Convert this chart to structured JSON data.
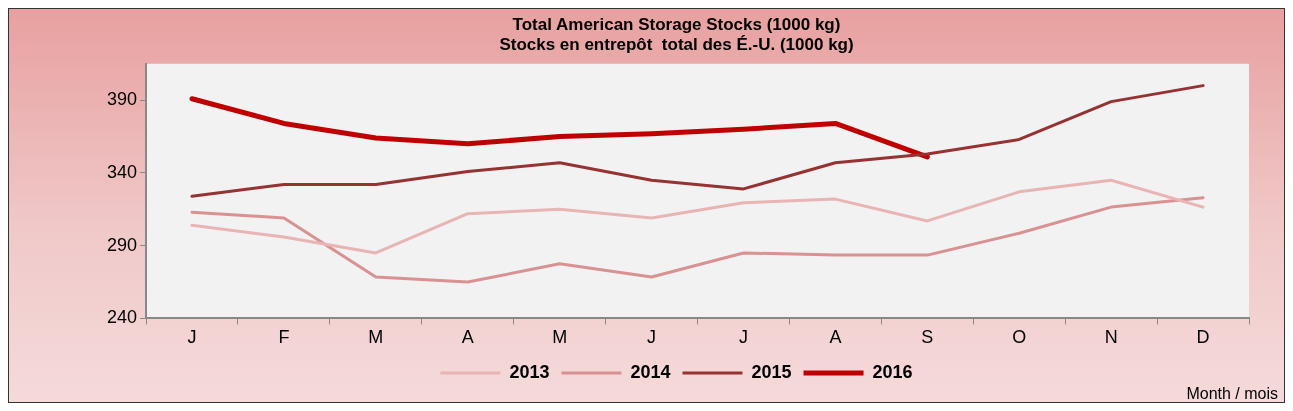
{
  "chart_data": {
    "type": "line",
    "title": [
      "Total American Storage Stocks (1000 kg)",
      "Stocks en entrepôt  total des É.-U. (1000 kg)"
    ],
    "xlabel": "Month / mois",
    "categories": [
      "J",
      "F",
      "M",
      "A",
      "M",
      "J",
      "J",
      "A",
      "S",
      "O",
      "N",
      "D"
    ],
    "series": [
      {
        "name": "2013",
        "color": "#e8b4b4",
        "values": [
          304,
          296,
          285,
          312,
          315,
          309,
          319.5,
          322,
          307,
          327,
          335,
          316.5
        ]
      },
      {
        "name": "2014",
        "color": "#d99191",
        "values": [
          313,
          309,
          268.5,
          265,
          277.5,
          268.5,
          285,
          283.5,
          283.5,
          298.5,
          316.5,
          323
        ]
      },
      {
        "name": "2015",
        "color": "#963232",
        "values": [
          324,
          332,
          332,
          341,
          347,
          335,
          329,
          347,
          353,
          363,
          389,
          400
        ]
      },
      {
        "name": "2016",
        "color": "#c00000",
        "values": [
          391,
          374,
          364,
          360,
          365,
          367,
          370,
          374,
          351,
          null,
          null,
          null
        ]
      }
    ],
    "ylim": [
      240,
      415
    ],
    "yticks": [
      240,
      290,
      340,
      390
    ],
    "grid": false,
    "legend": "bottom",
    "marker": "none",
    "line_style": "solid"
  }
}
